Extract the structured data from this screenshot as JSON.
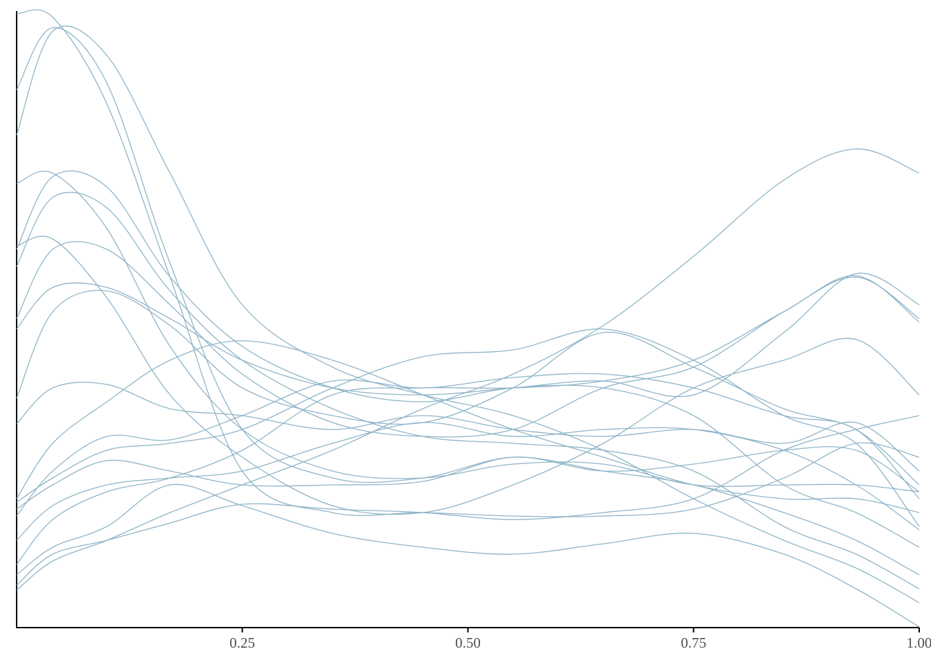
{
  "chart_data": {
    "type": "line",
    "color": "#8fb4c8",
    "x": [
      0,
      0.04,
      0.1,
      0.17,
      0.25,
      0.35,
      0.45,
      0.55,
      0.65,
      0.75,
      0.85,
      0.93,
      1.0
    ],
    "xlim": [
      0,
      1
    ],
    "xticks": [
      0.25,
      {
        "value": 0.5,
        "label": "0.50"
      },
      0.75,
      {
        "value": 1,
        "label": "1.00"
      }
    ],
    "ylim": [
      0,
      8.9
    ],
    "series": [
      {
        "values": [
          8.86,
          8.81,
          7.56,
          5.06,
          2.26,
          1.66,
          1.66,
          1.61,
          1.61,
          1.71,
          2.16,
          2.66,
          2.46
        ]
      },
      {
        "values": [
          7.76,
          8.66,
          7.86,
          5.26,
          2.86,
          2.16,
          2.16,
          2.46,
          2.26,
          2.06,
          1.66,
          1.26,
          0.76
        ]
      },
      {
        "values": [
          7.11,
          8.61,
          8.26,
          6.56,
          4.66,
          3.76,
          3.36,
          3.06,
          2.56,
          1.86,
          1.26,
          0.86,
          0.36
        ]
      },
      {
        "values": [
          6.41,
          6.56,
          5.76,
          4.06,
          2.86,
          2.26,
          2.16,
          2.36,
          2.36,
          2.06,
          2.06,
          2.06,
          1.96
        ]
      },
      {
        "values": [
          5.46,
          6.51,
          6.36,
          5.06,
          4.06,
          3.46,
          3.26,
          3.46,
          3.46,
          3.06,
          2.06,
          1.66,
          1.16
        ]
      },
      {
        "values": [
          5.21,
          6.21,
          6.06,
          4.86,
          3.86,
          3.16,
          2.76,
          2.66,
          2.56,
          2.26,
          1.46,
          1.06,
          0.56
        ]
      },
      {
        "values": [
          5.51,
          5.61,
          4.76,
          3.36,
          2.46,
          1.76,
          1.66,
          2.06,
          2.66,
          3.46,
          3.86,
          4.16,
          3.36
        ]
      },
      {
        "values": [
          4.46,
          5.46,
          5.46,
          4.66,
          3.66,
          2.96,
          2.76,
          2.86,
          3.46,
          3.76,
          4.56,
          5.06,
          4.46
        ]
      },
      {
        "values": [
          4.31,
          4.91,
          4.91,
          4.46,
          3.86,
          3.46,
          3.36,
          3.46,
          3.56,
          3.36,
          4.26,
          5.11,
          4.66
        ]
      },
      {
        "values": [
          3.31,
          4.56,
          4.86,
          4.36,
          3.46,
          3.06,
          2.96,
          3.46,
          4.26,
          3.76,
          3.16,
          2.86,
          2.06
        ]
      },
      {
        "values": [
          2.94,
          3.46,
          3.51,
          3.16,
          3.06,
          2.86,
          3.06,
          2.86,
          2.76,
          2.86,
          2.66,
          2.96,
          2.26
        ]
      },
      {
        "values": [
          1.86,
          2.66,
          3.26,
          3.86,
          4.14,
          3.86,
          3.36,
          2.86,
          2.46,
          2.06,
          1.86,
          1.86,
          1.66
        ]
      },
      {
        "values": [
          1.81,
          2.16,
          2.56,
          2.66,
          2.86,
          3.46,
          3.91,
          4.01,
          4.31,
          3.86,
          3.06,
          2.66,
          1.46
        ]
      },
      {
        "values": [
          1.61,
          2.26,
          2.76,
          2.71,
          3.06,
          3.56,
          3.46,
          3.61,
          3.66,
          3.46,
          3.06,
          2.86,
          1.86
        ]
      },
      {
        "values": [
          1.71,
          2.06,
          2.41,
          2.26,
          2.06,
          2.06,
          2.11,
          2.46,
          2.26,
          2.36,
          2.56,
          2.56,
          1.96
        ]
      },
      {
        "values": [
          1.26,
          1.76,
          2.06,
          2.16,
          2.26,
          2.66,
          2.96,
          2.76,
          2.86,
          2.86,
          2.56,
          2.06,
          1.41
        ]
      },
      {
        "values": [
          0.91,
          1.56,
          1.96,
          2.16,
          2.56,
          3.36,
          3.46,
          3.46,
          3.56,
          3.86,
          4.56,
          5.08,
          4.41
        ]
      },
      {
        "values": [
          0.61,
          1.06,
          1.26,
          1.51,
          1.78,
          1.71,
          1.66,
          1.56,
          1.66,
          1.86,
          2.56,
          2.86,
          3.06
        ]
      },
      {
        "values": [
          0.54,
          0.96,
          1.26,
          1.66,
          2.06,
          2.56,
          3.16,
          3.66,
          4.36,
          5.36,
          6.46,
          6.91,
          6.56
        ]
      },
      {
        "values": [
          0.76,
          1.16,
          1.46,
          2.06,
          1.76,
          1.36,
          1.16,
          1.06,
          1.21,
          1.36,
          1.06,
          0.56,
          0.01
        ]
      }
    ]
  }
}
